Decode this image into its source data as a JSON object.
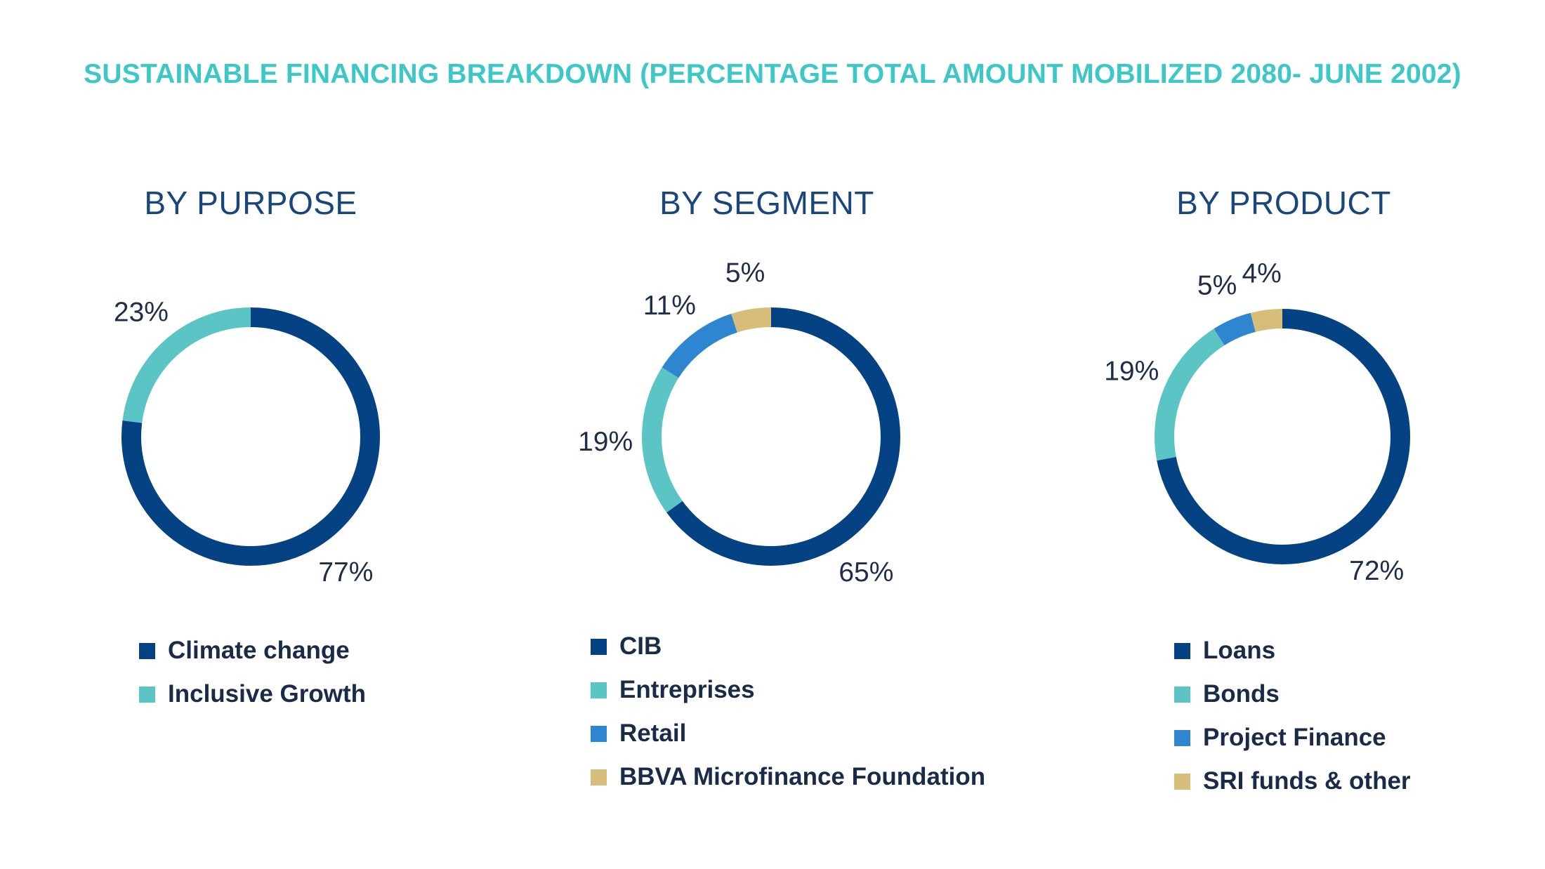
{
  "title": "SUSTAINABLE FINANCING BREAKDOWN (PERCENTAGE TOTAL AMOUNT MOBILIZED 2080- JUNE 2002)",
  "colors": {
    "title": "#3ec7c7",
    "panel_title": "#19467d",
    "label_text": "#1d2d4a",
    "legend_text": "#1a2b4a",
    "navy": "#044283",
    "aqua": "#5bc4c4",
    "blue": "#2d86cf",
    "sand": "#d6be7a"
  },
  "chart_data": [
    {
      "type": "pie",
      "title": "BY PURPOSE",
      "categories": [
        "Climate change",
        "Inclusive Growth"
      ],
      "values": [
        77,
        23
      ],
      "labels": [
        "77%",
        "23%"
      ],
      "colors": [
        "#044283",
        "#5bc4c4"
      ],
      "legend_placement": "bottom"
    },
    {
      "type": "pie",
      "title": "BY SEGMENT",
      "categories": [
        "CIB",
        "Entreprises",
        "Retail",
        "BBVA Microfinance Foundation"
      ],
      "values": [
        65,
        19,
        11,
        5
      ],
      "labels": [
        "65%",
        "19%",
        "11%",
        "5%"
      ],
      "colors": [
        "#044283",
        "#5bc4c4",
        "#2d86cf",
        "#d6be7a"
      ],
      "legend_placement": "bottom"
    },
    {
      "type": "pie",
      "title": "BY PRODUCT",
      "categories": [
        "Loans",
        "Bonds",
        "Project Finance",
        "SRI funds & other"
      ],
      "values": [
        72,
        19,
        5,
        4
      ],
      "labels": [
        "72%",
        "19%",
        "5%",
        "4%"
      ],
      "colors": [
        "#044283",
        "#5bc4c4",
        "#2d86cf",
        "#d6be7a"
      ],
      "legend_placement": "bottom"
    }
  ]
}
